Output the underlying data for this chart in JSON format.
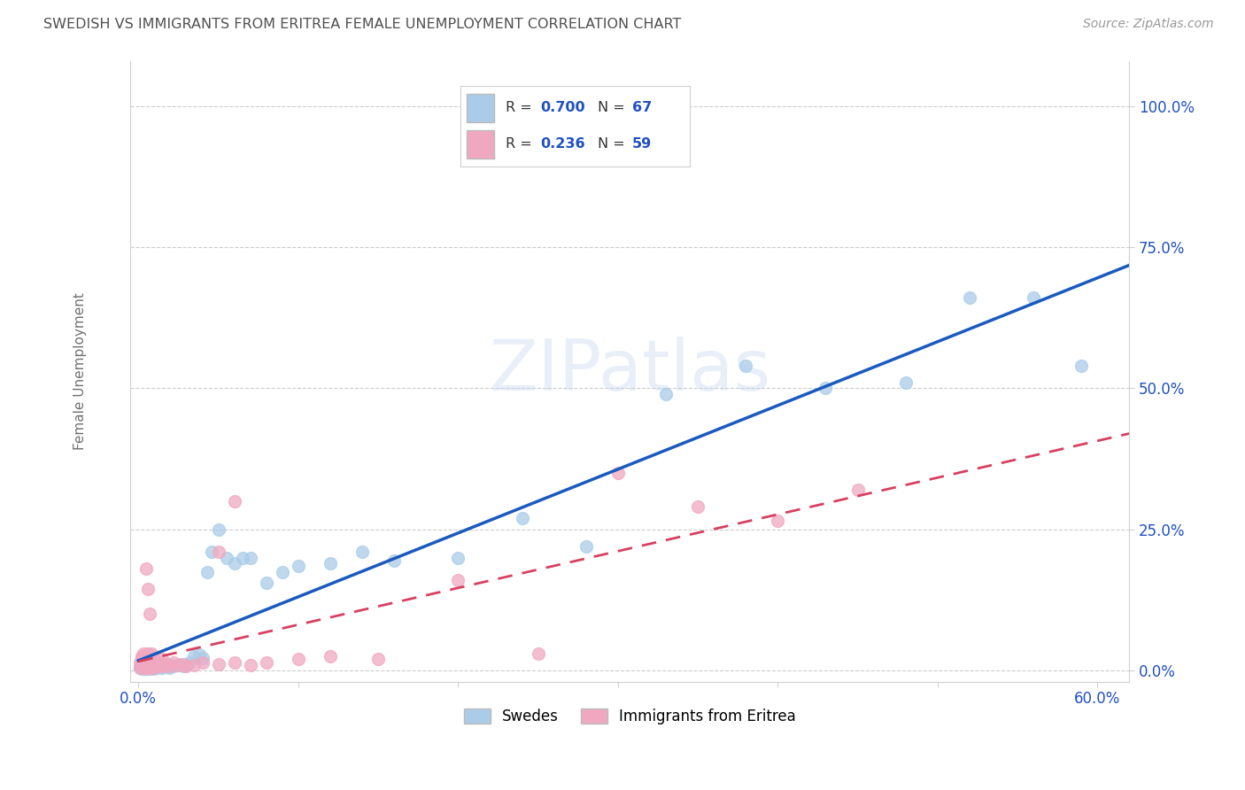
{
  "title": "SWEDISH VS IMMIGRANTS FROM ERITREA FEMALE UNEMPLOYMENT CORRELATION CHART",
  "source": "Source: ZipAtlas.com",
  "ylabel": "Female Unemployment",
  "xlim": [
    -0.005,
    0.62
  ],
  "ylim": [
    -0.02,
    1.08
  ],
  "yticks": [
    0.0,
    0.25,
    0.5,
    0.75,
    1.0
  ],
  "ytick_labels": [
    "0.0%",
    "25.0%",
    "50.0%",
    "75.0%",
    "100.0%"
  ],
  "swedes_R": 0.7,
  "swedes_N": 67,
  "eritrea_R": 0.236,
  "eritrea_N": 59,
  "swede_color": "#aacce8",
  "eritrea_color": "#f0a8c0",
  "swede_line_color": "#1a5abf",
  "eritrea_line_color": "#d84060",
  "background_color": "#ffffff",
  "grid_color": "#cccccc",
  "title_color": "#505050",
  "axis_label_color": "#707070",
  "legend_val_color": "#2050c0",
  "swedes_x": [
    0.001,
    0.001,
    0.002,
    0.002,
    0.002,
    0.003,
    0.003,
    0.003,
    0.004,
    0.004,
    0.004,
    0.005,
    0.005,
    0.005,
    0.006,
    0.006,
    0.007,
    0.007,
    0.007,
    0.008,
    0.008,
    0.009,
    0.009,
    0.01,
    0.01,
    0.011,
    0.012,
    0.013,
    0.014,
    0.015,
    0.016,
    0.017,
    0.018,
    0.019,
    0.02,
    0.022,
    0.024,
    0.026,
    0.028,
    0.03,
    0.032,
    0.035,
    0.038,
    0.04,
    0.043,
    0.046,
    0.05,
    0.055,
    0.06,
    0.065,
    0.07,
    0.08,
    0.09,
    0.1,
    0.12,
    0.14,
    0.16,
    0.2,
    0.24,
    0.28,
    0.33,
    0.38,
    0.43,
    0.48,
    0.52,
    0.56,
    0.59
  ],
  "swedes_y": [
    0.005,
    0.008,
    0.003,
    0.01,
    0.015,
    0.005,
    0.008,
    0.012,
    0.004,
    0.01,
    0.018,
    0.003,
    0.008,
    0.015,
    0.005,
    0.012,
    0.004,
    0.01,
    0.018,
    0.006,
    0.014,
    0.004,
    0.012,
    0.005,
    0.015,
    0.008,
    0.005,
    0.01,
    0.008,
    0.005,
    0.01,
    0.008,
    0.012,
    0.005,
    0.01,
    0.008,
    0.01,
    0.012,
    0.008,
    0.01,
    0.015,
    0.025,
    0.028,
    0.022,
    0.175,
    0.21,
    0.25,
    0.2,
    0.19,
    0.2,
    0.2,
    0.155,
    0.175,
    0.185,
    0.19,
    0.21,
    0.195,
    0.2,
    0.27,
    0.22,
    0.49,
    0.54,
    0.5,
    0.51,
    0.66,
    0.66,
    0.54
  ],
  "eritrea_x": [
    0.001,
    0.001,
    0.002,
    0.002,
    0.002,
    0.003,
    0.003,
    0.003,
    0.004,
    0.004,
    0.004,
    0.005,
    0.005,
    0.005,
    0.006,
    0.006,
    0.006,
    0.007,
    0.007,
    0.008,
    0.008,
    0.008,
    0.009,
    0.009,
    0.01,
    0.01,
    0.011,
    0.012,
    0.013,
    0.014,
    0.015,
    0.015,
    0.016,
    0.018,
    0.02,
    0.022,
    0.025,
    0.028,
    0.03,
    0.035,
    0.04,
    0.05,
    0.06,
    0.07,
    0.08,
    0.1,
    0.12,
    0.15,
    0.2,
    0.25,
    0.3,
    0.35,
    0.4,
    0.45,
    0.05,
    0.06,
    0.005,
    0.006,
    0.007
  ],
  "eritrea_y": [
    0.005,
    0.015,
    0.008,
    0.02,
    0.025,
    0.005,
    0.012,
    0.03,
    0.008,
    0.015,
    0.025,
    0.005,
    0.012,
    0.02,
    0.008,
    0.015,
    0.03,
    0.005,
    0.012,
    0.008,
    0.018,
    0.03,
    0.005,
    0.015,
    0.008,
    0.02,
    0.01,
    0.008,
    0.015,
    0.01,
    0.008,
    0.02,
    0.01,
    0.012,
    0.008,
    0.015,
    0.01,
    0.012,
    0.008,
    0.01,
    0.015,
    0.012,
    0.015,
    0.01,
    0.015,
    0.02,
    0.025,
    0.02,
    0.16,
    0.03,
    0.35,
    0.29,
    0.265,
    0.32,
    0.21,
    0.3,
    0.18,
    0.145,
    0.1
  ]
}
